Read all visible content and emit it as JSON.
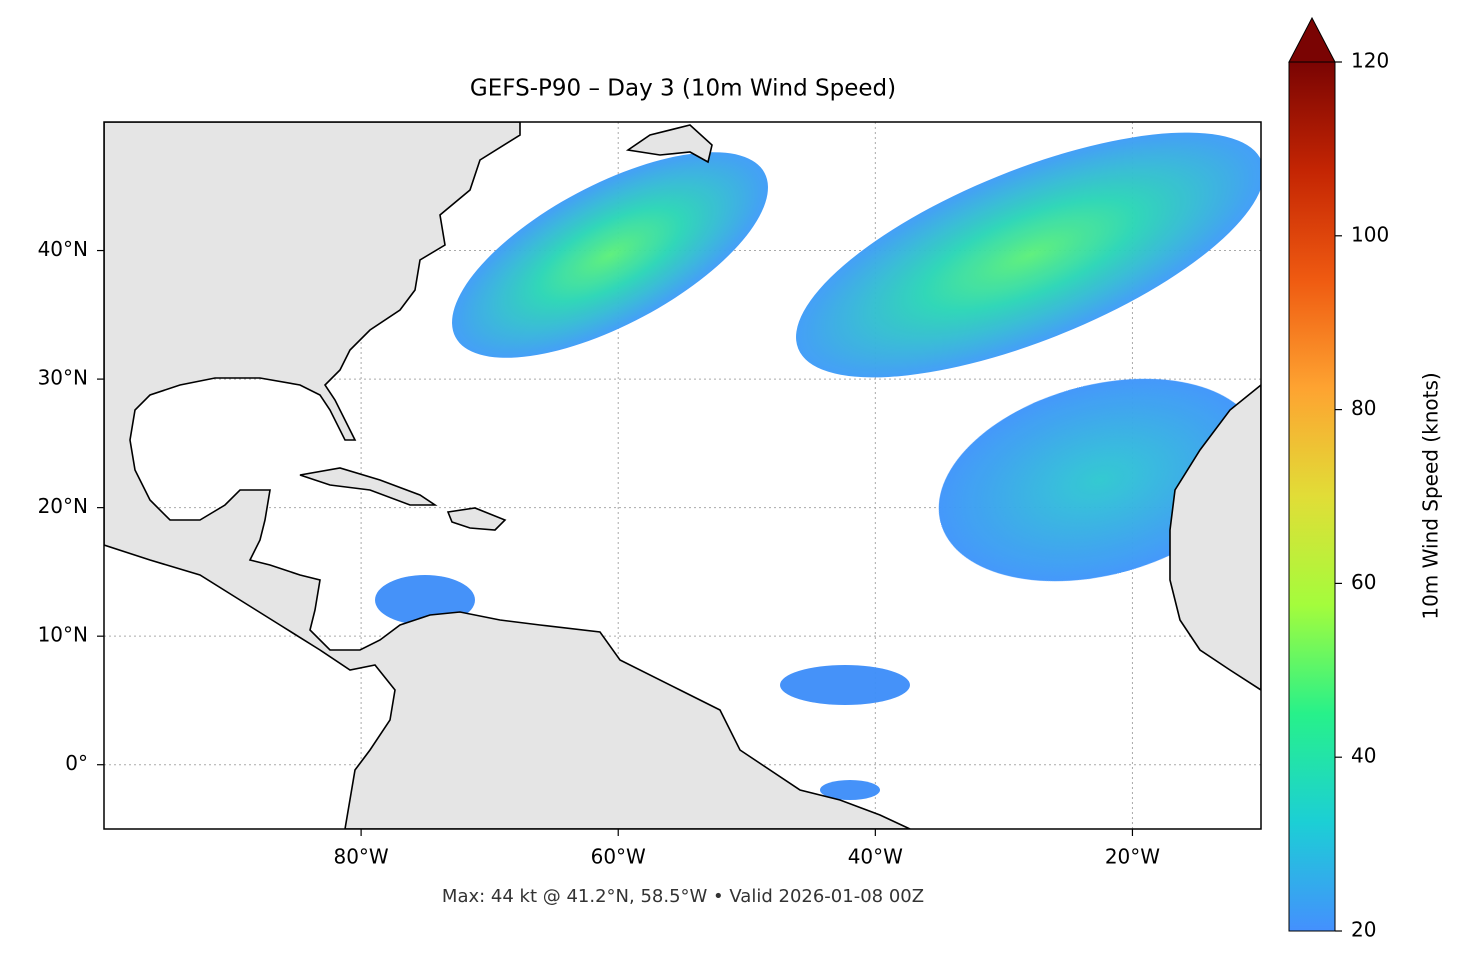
{
  "chart_data": {
    "type": "map",
    "title": "GEFS-P90 – Day 3 (10m Wind Speed)",
    "footnote": "Max: 44 kt @ 41.2°N, 58.5°W • Valid 2026-01-08 00Z",
    "xlim": [
      -100,
      -10
    ],
    "ylim": [
      -5,
      50
    ],
    "xticks": [
      {
        "value": -80,
        "label": "80°W"
      },
      {
        "value": -60,
        "label": "60°W"
      },
      {
        "value": -40,
        "label": "40°W"
      },
      {
        "value": -20,
        "label": "20°W"
      }
    ],
    "yticks": [
      {
        "value": 0,
        "label": "0°"
      },
      {
        "value": 10,
        "label": "10°N"
      },
      {
        "value": 20,
        "label": "20°N"
      },
      {
        "value": 30,
        "label": "30°N"
      },
      {
        "value": 40,
        "label": "40°N"
      }
    ],
    "grid": true,
    "colorbar": {
      "label": "10m Wind Speed (knots)",
      "lim": [
        20,
        120
      ],
      "ticks": [
        20,
        40,
        60,
        80,
        100,
        120
      ],
      "extend": "max",
      "colors": [
        "#4490fe",
        "#1ccfd5",
        "#27f18a",
        "#a4fc3c",
        "#e1dd37",
        "#fea331",
        "#ef5a11",
        "#c42503",
        "#7a0403"
      ]
    }
  }
}
